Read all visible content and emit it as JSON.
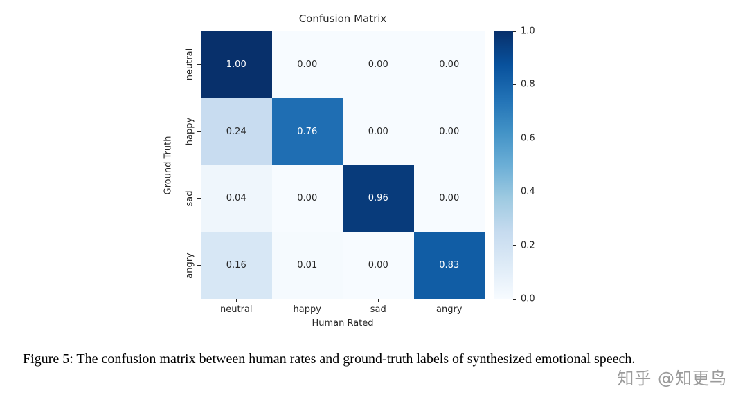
{
  "chart_data": {
    "type": "heatmap",
    "title": "Confusion Matrix",
    "xlabel": "Human Rated",
    "ylabel": "Ground Truth",
    "x_categories": [
      "neutral",
      "happy",
      "sad",
      "angry"
    ],
    "y_categories": [
      "neutral",
      "happy",
      "sad",
      "angry"
    ],
    "matrix": [
      [
        1.0,
        0.0,
        0.0,
        0.0
      ],
      [
        0.24,
        0.76,
        0.0,
        0.0
      ],
      [
        0.04,
        0.0,
        0.96,
        0.0
      ],
      [
        0.16,
        0.01,
        0.0,
        0.83
      ]
    ],
    "value_decimals": 2,
    "colormap": "Blues",
    "colormap_stops": [
      [
        0.0,
        "#f7fbff"
      ],
      [
        0.125,
        "#deebf7"
      ],
      [
        0.25,
        "#c6dbef"
      ],
      [
        0.375,
        "#9ecae1"
      ],
      [
        0.5,
        "#6baed6"
      ],
      [
        0.625,
        "#4292c6"
      ],
      [
        0.75,
        "#2171b5"
      ],
      [
        0.875,
        "#08519c"
      ],
      [
        1.0,
        "#08306b"
      ]
    ],
    "colorbar": {
      "min": 0.0,
      "max": 1.0,
      "tick_labels_top_to_bottom": [
        "1.0",
        "0.8",
        "0.6",
        "0.4",
        "0.2",
        "0.0"
      ],
      "position": "right"
    },
    "grid": false,
    "cell_text_light": "#ffffff",
    "cell_text_dark": "#262626"
  },
  "caption": {
    "text": "Figure 5: The confusion matrix between human rates and ground-truth labels of synthesized emotional speech."
  },
  "watermark": {
    "text": "知乎 @知更鸟",
    "color": "#9b9b9b"
  }
}
